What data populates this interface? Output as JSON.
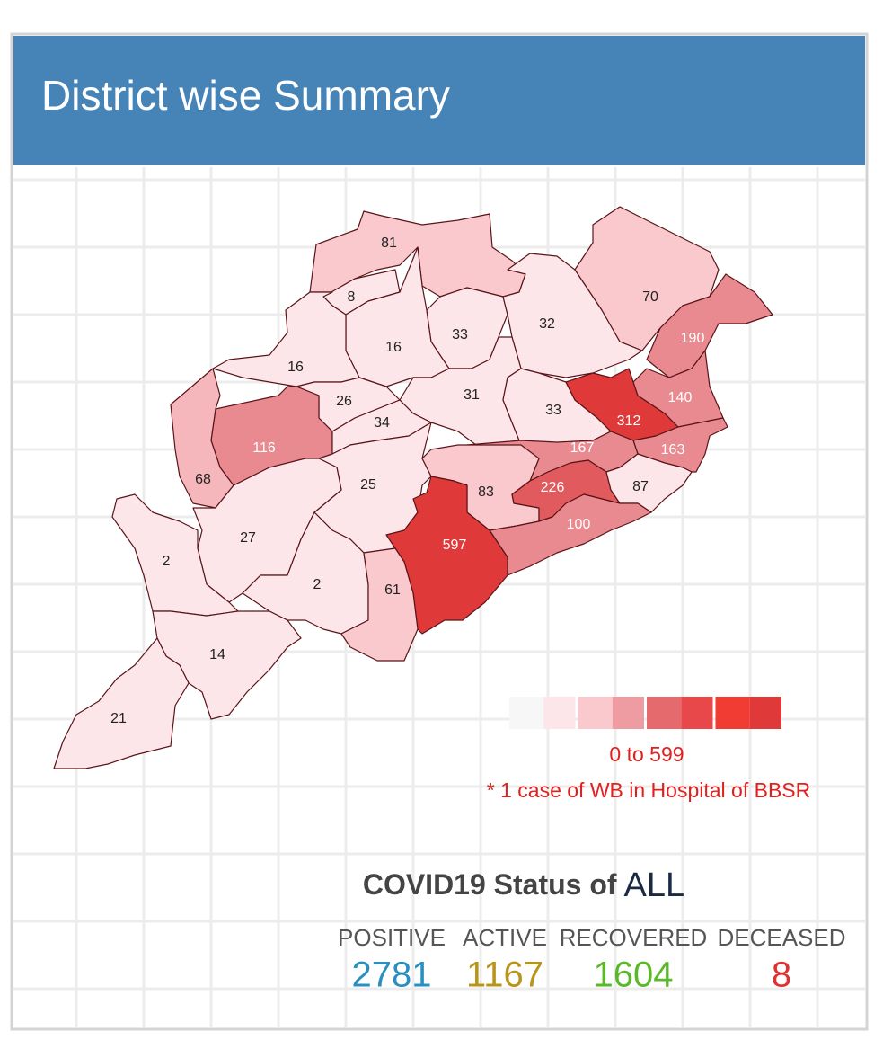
{
  "header": {
    "title": "District wise Summary"
  },
  "map": {
    "districts": [
      {
        "value": 81,
        "color": "#f9c9ce"
      },
      {
        "value": 8,
        "color": "#fde6ea"
      },
      {
        "value": 16,
        "color": "#fde6ea"
      },
      {
        "value": 33,
        "color": "#fde6ea"
      },
      {
        "value": 32,
        "color": "#fde6ea"
      },
      {
        "value": 70,
        "color": "#f9c9ce"
      },
      {
        "value": 190,
        "color": "#e88a90"
      },
      {
        "value": 16,
        "color": "#fde6ea"
      },
      {
        "value": 26,
        "color": "#fde6ea"
      },
      {
        "value": 31,
        "color": "#fde6ea"
      },
      {
        "value": 33,
        "color": "#fde6ea"
      },
      {
        "value": 312,
        "color": "#e0393a"
      },
      {
        "value": 140,
        "color": "#e88a90"
      },
      {
        "value": 116,
        "color": "#e88a90"
      },
      {
        "value": 34,
        "color": "#fde6ea"
      },
      {
        "value": 163,
        "color": "#e88a90"
      },
      {
        "value": 167,
        "color": "#e88a90"
      },
      {
        "value": 68,
        "color": "#f5b7bc"
      },
      {
        "value": 25,
        "color": "#fde6ea"
      },
      {
        "value": 83,
        "color": "#f9c9ce"
      },
      {
        "value": 226,
        "color": "#e05a5e"
      },
      {
        "value": 87,
        "color": "#fde6ea"
      },
      {
        "value": 100,
        "color": "#e88a90"
      },
      {
        "value": 597,
        "color": "#e0393a"
      },
      {
        "value": 27,
        "color": "#fde6ea"
      },
      {
        "value": 2,
        "color": "#fde6ea"
      },
      {
        "value": 2,
        "color": "#fde6ea"
      },
      {
        "value": 61,
        "color": "#f9c9ce"
      },
      {
        "value": 14,
        "color": "#fde6ea"
      },
      {
        "value": 21,
        "color": "#fde6ea"
      }
    ]
  },
  "legend": {
    "colors": [
      "#f7f7f7",
      "#fde6ea",
      "#f9c9ce",
      "#ee9ca1",
      "#e46a6e",
      "#e9484b",
      "#f03c32",
      "#e0393a"
    ],
    "range_label": "0 to 599",
    "note": "* 1 case of WB in Hospital of BBSR"
  },
  "status": {
    "title": "COVID19 Status of",
    "scope": "ALL",
    "items": [
      {
        "label": "POSITIVE",
        "value": 2781,
        "color": "#2a8fc0"
      },
      {
        "label": "ACTIVE",
        "value": 1167,
        "color": "#b8941a"
      },
      {
        "label": "RECOVERED",
        "value": 1604,
        "color": "#5ab82a"
      },
      {
        "label": "DECEASED",
        "value": 8,
        "color": "#e03030"
      }
    ]
  }
}
